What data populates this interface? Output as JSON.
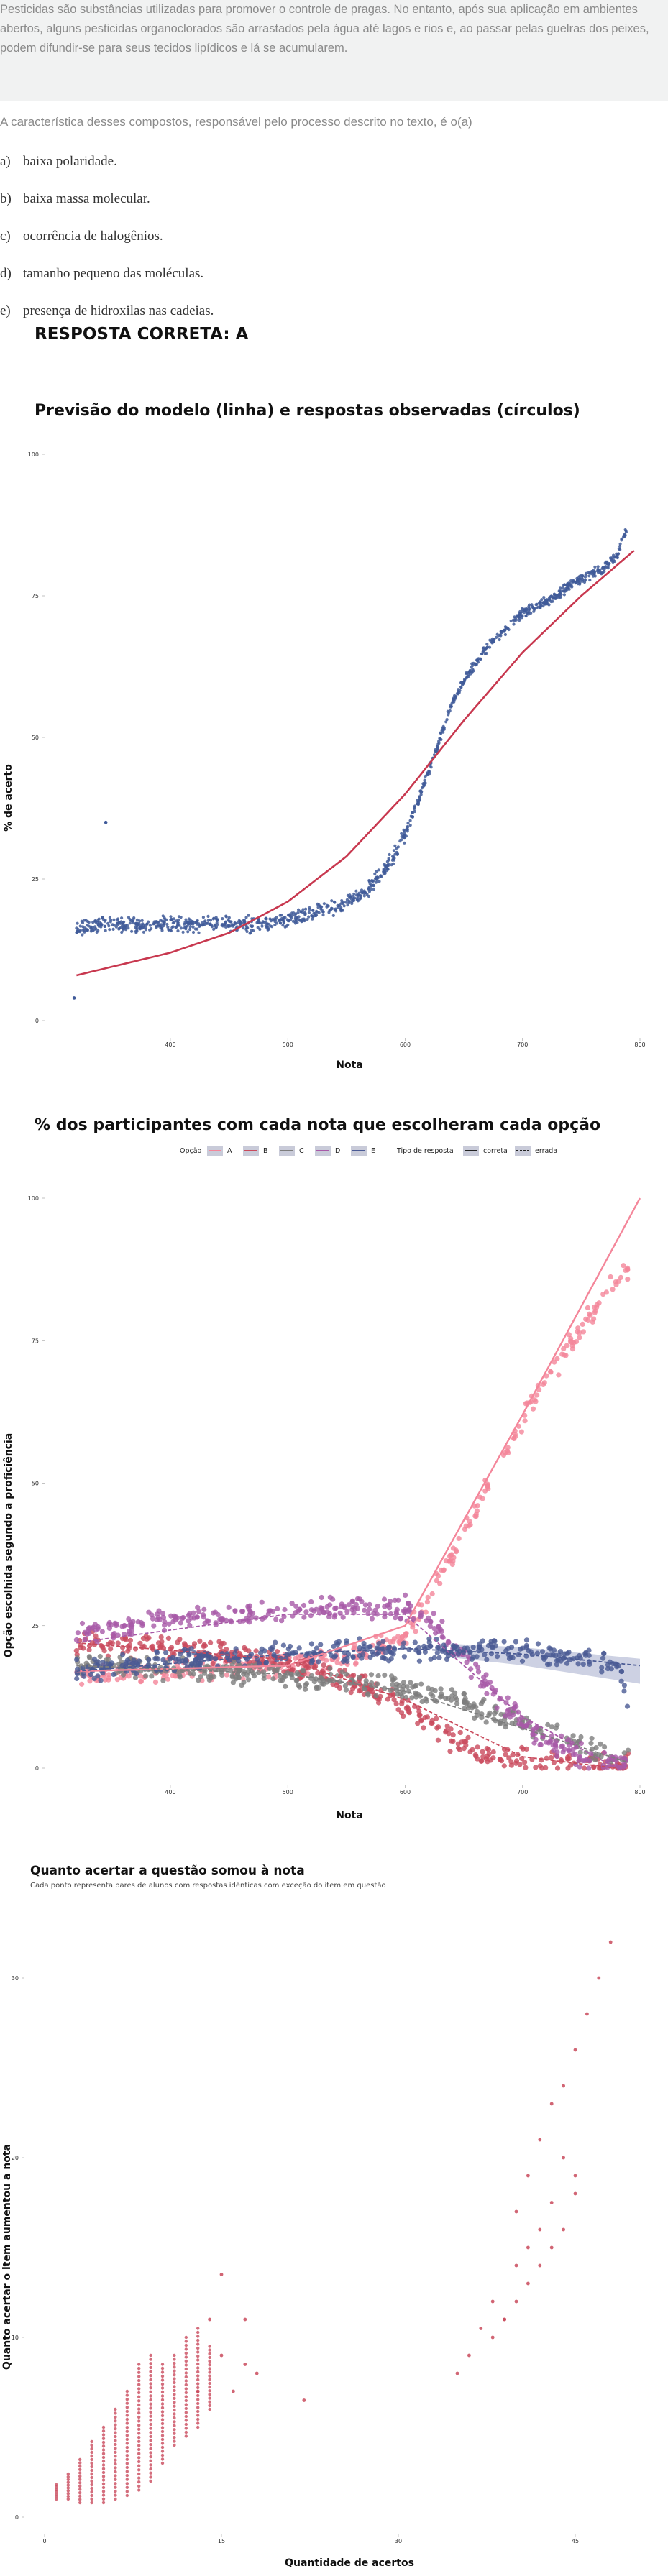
{
  "question": {
    "passage": "Pesticidas são substâncias utilizadas para promover o controle de pragas. No entanto, após sua aplicação em ambientes abertos, alguns pesticidas organoclorados são arrastados pela água até lagos e rios e, ao passar pelas guelras dos peixes, podem difundir-se para seus tecidos lipídicos e lá se acumularem.",
    "stem": "A característica desses compostos, responsável pelo processo descrito no texto, é o(a)",
    "options": [
      {
        "letter": "a)",
        "text": "baixa polaridade."
      },
      {
        "letter": "b)",
        "text": "baixa massa molecular."
      },
      {
        "letter": "c)",
        "text": "ocorrência de halogênios."
      },
      {
        "letter": "d)",
        "text": "tamanho pequeno das moléculas."
      },
      {
        "letter": "e)",
        "text": "presença de hidroxilas nas cadeias."
      }
    ],
    "answer": "RESPOSTA CORRETA: A"
  },
  "chart_data": [
    {
      "type": "scatter",
      "title": "Previsão do modelo (linha) e respostas observadas (círculos)",
      "xlabel": "Nota",
      "ylabel": "% de acerto",
      "xlim": [
        310,
        800
      ],
      "ylim": [
        0,
        100
      ],
      "xticks": [
        400,
        500,
        600,
        700,
        800
      ],
      "yticks": [
        0,
        25,
        50,
        75,
        100
      ],
      "colors": {
        "points": "#3f5a99",
        "line": "#c8384f"
      },
      "series": [
        {
          "style": "line",
          "x": [
            320,
            350,
            400,
            450,
            500,
            550,
            600,
            650,
            700,
            750,
            795
          ],
          "y": [
            8,
            9.5,
            12,
            15.5,
            21,
            29,
            40,
            53,
            65,
            75,
            83
          ]
        },
        {
          "style": "points",
          "x": [
            320,
            330,
            340,
            350,
            360,
            370,
            380,
            390,
            400,
            410,
            420,
            430,
            440,
            450,
            460,
            470,
            480,
            490,
            500,
            510,
            520,
            530,
            540,
            550,
            560,
            570,
            580,
            590,
            600,
            610,
            620,
            630,
            640,
            650,
            660,
            670,
            680,
            690,
            700,
            710,
            720,
            730,
            740,
            750,
            760,
            770,
            780,
            790
          ],
          "y": [
            16,
            16.5,
            17,
            17,
            17,
            17,
            17,
            17,
            17,
            17,
            17,
            17,
            17,
            17,
            17,
            17,
            17,
            17.5,
            18,
            18.5,
            19,
            19.5,
            20,
            21,
            22,
            23.5,
            26,
            29,
            33,
            38,
            44,
            50,
            56,
            60,
            63,
            66,
            68,
            70,
            72,
            73,
            74,
            75,
            77,
            78,
            79,
            80,
            82,
            88
          ]
        },
        {
          "style": "outliers",
          "x": [
            318,
            345
          ],
          "y": [
            4,
            35
          ]
        }
      ]
    },
    {
      "type": "scatter",
      "title": "% dos participantes com cada nota que escolheram cada opção",
      "xlabel": "Nota",
      "ylabel": "Opção escolhida segundo a proficiência",
      "xlim": [
        310,
        800
      ],
      "ylim": [
        0,
        100
      ],
      "xticks": [
        400,
        500,
        600,
        700,
        800
      ],
      "yticks": [
        0,
        25,
        50,
        75,
        100
      ],
      "legend": {
        "option_title": "Opção",
        "options": [
          "A",
          "B",
          "C",
          "D",
          "E"
        ],
        "type_title": "Tipo de resposta",
        "types": [
          "correta",
          "errada"
        ]
      },
      "series": [
        {
          "name": "A",
          "color": "#f4869a",
          "x": [
            320,
            360,
            400,
            450,
            500,
            550,
            600,
            620,
            640,
            660,
            680,
            700,
            720,
            740,
            760,
            780,
            795
          ],
          "y": [
            16,
            16.5,
            17,
            17.5,
            18,
            19.5,
            23,
            30,
            37,
            45,
            53,
            61,
            68,
            74,
            80,
            86,
            88
          ]
        },
        {
          "name": "B",
          "color": "#c94a5c",
          "x": [
            320,
            360,
            400,
            450,
            500,
            550,
            600,
            620,
            640,
            660,
            680,
            700,
            720,
            740,
            760
          ],
          "y": [
            22,
            21.5,
            21,
            20,
            18.5,
            15.5,
            11,
            8,
            5,
            3,
            2,
            1.5,
            1,
            0.7,
            0.5
          ]
        },
        {
          "name": "C",
          "color": "#7d7d7d",
          "x": [
            320,
            360,
            400,
            450,
            500,
            550,
            600,
            620,
            640,
            660,
            680,
            700,
            720,
            740,
            760,
            780
          ],
          "y": [
            18,
            18,
            17.5,
            17,
            16,
            15,
            14,
            13,
            12,
            10.5,
            9,
            8,
            6.5,
            5,
            3.5,
            2
          ]
        },
        {
          "name": "D",
          "color": "#a85aa8",
          "x": [
            320,
            360,
            400,
            450,
            500,
            550,
            600,
            620,
            640,
            660,
            680,
            700,
            720,
            740,
            760
          ],
          "y": [
            23,
            25,
            26,
            27,
            27.5,
            28,
            28,
            26,
            22,
            17,
            12,
            8,
            5,
            3,
            1.5
          ]
        },
        {
          "name": "E",
          "color": "#4a5a94",
          "x": [
            320,
            360,
            400,
            450,
            500,
            550,
            600,
            620,
            640,
            660,
            680,
            700,
            720,
            740,
            760,
            780,
            795
          ],
          "y": [
            17,
            18,
            19,
            19.5,
            20,
            20.5,
            20.5,
            21,
            21,
            21,
            21,
            20.5,
            20,
            19.5,
            19,
            18,
            9
          ]
        }
      ],
      "trend_lines": [
        {
          "name": "A",
          "x": [
            320,
            500,
            600,
            700,
            800
          ],
          "y": [
            17,
            18,
            25,
            62,
            100
          ]
        },
        {
          "name": "B",
          "x": [
            320,
            500,
            600,
            700,
            780
          ],
          "y": [
            22,
            19,
            12,
            2,
            0
          ]
        },
        {
          "name": "C",
          "x": [
            320,
            500,
            600,
            700,
            790
          ],
          "y": [
            18,
            16.5,
            13.5,
            7,
            1
          ]
        },
        {
          "name": "D",
          "x": [
            320,
            500,
            600,
            700,
            780
          ],
          "y": [
            22,
            27,
            27,
            9,
            0
          ]
        },
        {
          "name": "E",
          "x": [
            320,
            500,
            600,
            700,
            800
          ],
          "y": [
            17,
            20,
            21,
            20,
            18
          ]
        }
      ]
    },
    {
      "type": "scatter",
      "title": "Quanto acertar a questão somou à nota",
      "subtitle": "Cada ponto representa pares de alunos com respostas idênticas com exceção do item em questão",
      "xlabel": "Quantidade de acertos",
      "ylabel": "Quanto acertar o item aumentou a nota",
      "xlim": [
        0,
        45
      ],
      "ylim": [
        0,
        34
      ],
      "xticks": [
        0,
        15,
        30,
        45
      ],
      "yticks": [
        0,
        10,
        20,
        30
      ],
      "colors": {
        "points": "#c94a5c"
      },
      "columns": [
        {
          "x": 1,
          "y": [
            1,
            1.8
          ]
        },
        {
          "x": 2,
          "y": [
            1,
            2.4
          ]
        },
        {
          "x": 3,
          "y": [
            0.8,
            3.2
          ]
        },
        {
          "x": 4,
          "y": [
            0.8,
            4.2
          ]
        },
        {
          "x": 5,
          "y": [
            0.8,
            5
          ]
        },
        {
          "x": 6,
          "y": [
            1,
            6
          ]
        },
        {
          "x": 7,
          "y": [
            1.2,
            7
          ]
        },
        {
          "x": 8,
          "y": [
            1.5,
            8.5
          ]
        },
        {
          "x": 9,
          "y": [
            2,
            9
          ]
        },
        {
          "x": 10,
          "y": [
            3,
            8.5
          ]
        },
        {
          "x": 11,
          "y": [
            4,
            9
          ]
        },
        {
          "x": 12,
          "y": [
            4.5,
            10
          ]
        },
        {
          "x": 13,
          "y": [
            5,
            10.5
          ]
        },
        {
          "x": 14,
          "y": [
            6,
            9.5
          ]
        }
      ],
      "points": {
        "x": [
          15,
          17,
          18,
          22,
          14,
          15,
          16,
          17,
          13,
          38,
          39,
          40,
          41,
          42,
          43,
          44,
          45,
          40,
          41,
          42,
          43,
          44,
          45,
          46,
          47,
          48,
          35,
          36,
          37,
          38,
          39,
          40,
          41,
          42,
          43,
          44,
          45
        ],
        "y": [
          13.5,
          11,
          8,
          6.5,
          11,
          9,
          7,
          8.5,
          7,
          10,
          11,
          12,
          13,
          14,
          15,
          16,
          18,
          17,
          19,
          21,
          23,
          24,
          26,
          28,
          30,
          32,
          8,
          9,
          10.5,
          12,
          11,
          14,
          15,
          16,
          17.5,
          20,
          19
        ]
      }
    }
  ]
}
